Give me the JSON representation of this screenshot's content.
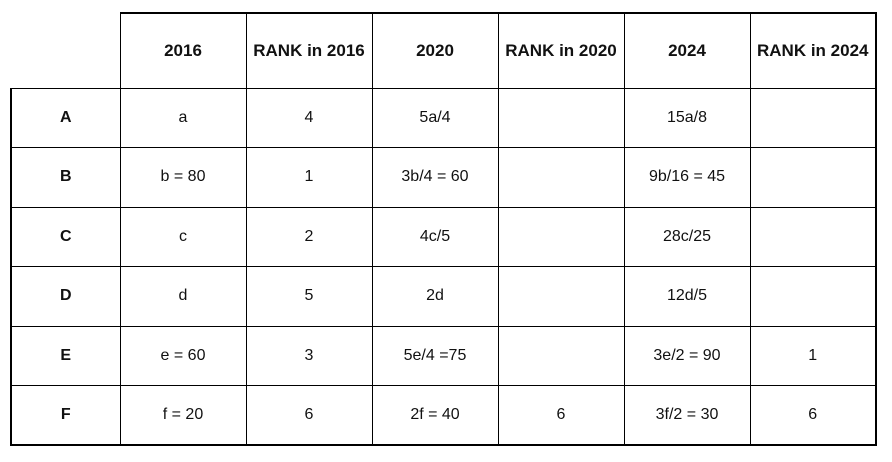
{
  "chart_data": {
    "type": "table",
    "title": "",
    "columns": [
      "",
      "2016",
      "RANK in 2016",
      "2020",
      "RANK in 2020",
      "2024",
      "RANK in 2024"
    ],
    "rows": [
      [
        "A",
        "a",
        "4",
        "5a/4",
        "",
        "15a/8",
        ""
      ],
      [
        "B",
        "b = 80",
        "1",
        "3b/4 = 60",
        "",
        "9b/16 = 45",
        ""
      ],
      [
        "C",
        "c",
        "2",
        "4c/5",
        "",
        "28c/25",
        ""
      ],
      [
        "D",
        "d",
        "5",
        "2d",
        "",
        "12d/5",
        ""
      ],
      [
        "E",
        "e = 60",
        "3",
        "5e/4 =75",
        "",
        "3e/2 = 90",
        "1"
      ],
      [
        "F",
        "f = 20",
        "6",
        "2f = 40",
        "6",
        "3f/2 = 30",
        "6"
      ]
    ],
    "layout_hints": {
      "corner_cell_borderless": true,
      "text_alignment": "center",
      "grid": true
    }
  },
  "colors": {
    "background": "#ffffff",
    "border": "#000000",
    "text": "#111111"
  }
}
